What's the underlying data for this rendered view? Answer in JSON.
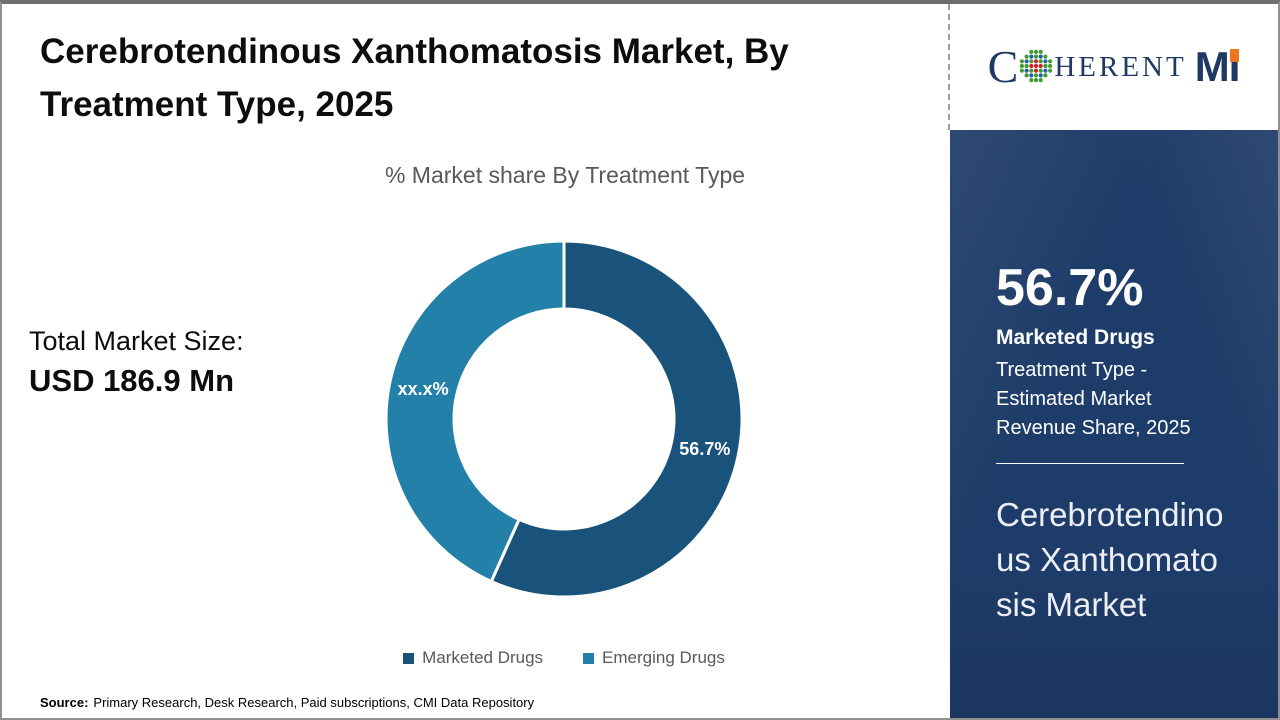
{
  "header": {
    "title": "Cerebrotendinous Xanthomatosis Market, By Treatment Type, 2025"
  },
  "logo": {
    "alt": "COHERENT MI",
    "part_c": "C",
    "part_herent": "HERENT",
    "part_m": "M",
    "part_i": "I",
    "navy": "#1f3864",
    "orange": "#ee7623"
  },
  "stats": {
    "total_label": "Total Market Size:",
    "total_value": "USD 186.9 Mn"
  },
  "chart_data": {
    "type": "pie",
    "subtype": "donut",
    "title": "% Market share By Treatment Type",
    "hole_ratio": 0.62,
    "start_angle_deg": 0,
    "legend_position": "bottom",
    "slices": [
      {
        "label": "Marketed Drugs",
        "value": 56.7,
        "display_label": "56.7%",
        "color": "#19537b"
      },
      {
        "label": "Emerging Drugs",
        "value": 43.3,
        "display_label": "xx.x%",
        "color": "#2380a9"
      }
    ]
  },
  "sidebar": {
    "bg": "#1e3c69",
    "stat_value": "56.7%",
    "stat_label": "Marketed Drugs",
    "stat_desc": "Treatment Type - Estimated Market Revenue Share, 2025",
    "market_name": "Cerebrotendinous Xanthomatosis Market"
  },
  "footer": {
    "source_label": "Source:",
    "source_text": "Primary Research, Desk Research, Paid subscriptions, CMI Data Repository"
  }
}
